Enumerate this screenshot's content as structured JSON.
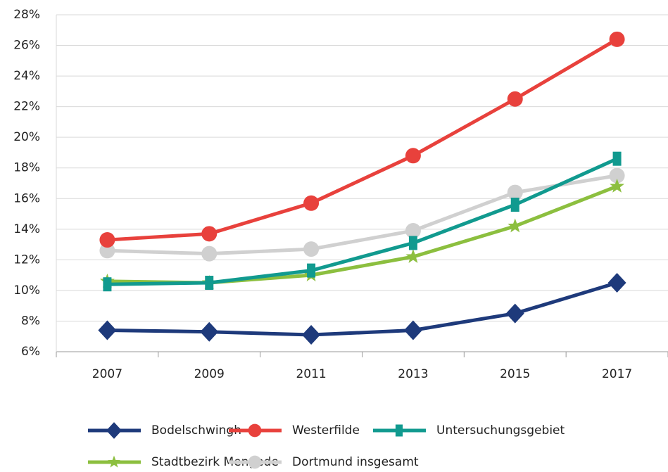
{
  "chart_data": {
    "type": "line",
    "categories": [
      "2007",
      "2009",
      "2011",
      "2013",
      "2015",
      "2017"
    ],
    "series": [
      {
        "name": "Bodelschwingh",
        "color": "#1e3a7b",
        "marker": "diamond",
        "values": [
          7.4,
          7.3,
          7.1,
          7.4,
          8.5,
          10.5
        ]
      },
      {
        "name": "Westerfilde",
        "color": "#e8413c",
        "marker": "circle",
        "values": [
          13.3,
          13.7,
          15.7,
          18.8,
          22.5,
          26.4
        ]
      },
      {
        "name": "Untersuchungsgebiet",
        "color": "#119a8f",
        "marker": "square",
        "values": [
          10.4,
          10.5,
          11.3,
          13.1,
          15.6,
          18.6
        ]
      },
      {
        "name": "Stadtbezirk Mengede",
        "color": "#8cbf3f",
        "marker": "star",
        "values": [
          10.6,
          10.5,
          11.0,
          12.2,
          14.2,
          16.8
        ]
      },
      {
        "name": "Dortmund insgesamt",
        "color": "#d0d0d0",
        "marker": "circle",
        "values": [
          12.6,
          12.4,
          12.7,
          13.9,
          16.4,
          17.5
        ]
      }
    ],
    "ylim": [
      6,
      28
    ],
    "yticks": [
      {
        "value": 6,
        "label": "6%"
      },
      {
        "value": 8,
        "label": "8%"
      },
      {
        "value": 10,
        "label": "10%"
      },
      {
        "value": 12,
        "label": "12%"
      },
      {
        "value": 14,
        "label": "14%"
      },
      {
        "value": 16,
        "label": "16%"
      },
      {
        "value": 18,
        "label": "18%"
      },
      {
        "value": 20,
        "label": "20%"
      },
      {
        "value": 22,
        "label": "22%"
      },
      {
        "value": 24,
        "label": "24%"
      },
      {
        "value": 26,
        "label": "26%"
      },
      {
        "value": 28,
        "label": "28%"
      }
    ],
    "grid": true,
    "legend": "bottom"
  }
}
